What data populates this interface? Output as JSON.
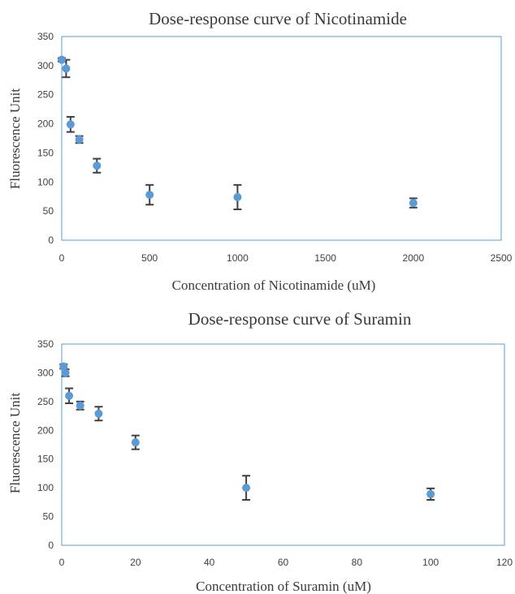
{
  "charts": [
    {
      "title": "Dose-response curve of Nicotinamide",
      "xlabel": "Concentration  of Nicotinamide  (uM)",
      "ylabel": "Fluorescence  Unit",
      "xticks": [
        "0",
        "500",
        "1000",
        "1500",
        "2000",
        "2500"
      ],
      "yticks": [
        "0",
        "50",
        "100",
        "150",
        "200",
        "250",
        "300",
        "350"
      ]
    },
    {
      "title": "Dose-response curve of Suramin",
      "xlabel": "Concentration  of Suramin  (uM)",
      "ylabel": "Fluorescence  Unit",
      "xticks": [
        "0",
        "20",
        "40",
        "60",
        "80",
        "100",
        "120"
      ],
      "yticks": [
        "0",
        "50",
        "100",
        "150",
        "200",
        "250",
        "300",
        "350"
      ]
    }
  ],
  "colors": {
    "marker": "#5b9bd5",
    "error_bar": "#404040",
    "frame": "#5b9bd5"
  },
  "chart_data": [
    {
      "type": "scatter",
      "title": "Dose-response curve of Nicotinamide",
      "xlabel": "Concentration  of Nicotinamide  (uM)",
      "ylabel": "Fluorescence  Unit",
      "xlim": [
        0,
        2500
      ],
      "ylim": [
        0,
        350
      ],
      "grid": false,
      "error_bars": true,
      "points": [
        {
          "x": 0,
          "y": 310,
          "err": 3
        },
        {
          "x": 25,
          "y": 295,
          "err": 15
        },
        {
          "x": 50,
          "y": 199,
          "err": 13
        },
        {
          "x": 100,
          "y": 173,
          "err": 6
        },
        {
          "x": 200,
          "y": 128,
          "err": 12
        },
        {
          "x": 500,
          "y": 78,
          "err": 17
        },
        {
          "x": 1000,
          "y": 74,
          "err": 21
        },
        {
          "x": 2000,
          "y": 64,
          "err": 8
        }
      ]
    },
    {
      "type": "scatter",
      "title": "Dose-response curve of Suramin",
      "xlabel": "Concentration  of Suramin  (uM)",
      "ylabel": "Fluorescence  Unit",
      "xlim": [
        0,
        120
      ],
      "ylim": [
        0,
        350
      ],
      "grid": false,
      "error_bars": true,
      "points": [
        {
          "x": 0.5,
          "y": 311,
          "err": 4
        },
        {
          "x": 1,
          "y": 300,
          "err": 6
        },
        {
          "x": 2,
          "y": 260,
          "err": 13
        },
        {
          "x": 5,
          "y": 243,
          "err": 7
        },
        {
          "x": 10,
          "y": 229,
          "err": 12
        },
        {
          "x": 20,
          "y": 179,
          "err": 12
        },
        {
          "x": 50,
          "y": 100,
          "err": 21
        },
        {
          "x": 100,
          "y": 89,
          "err": 10
        }
      ]
    }
  ]
}
